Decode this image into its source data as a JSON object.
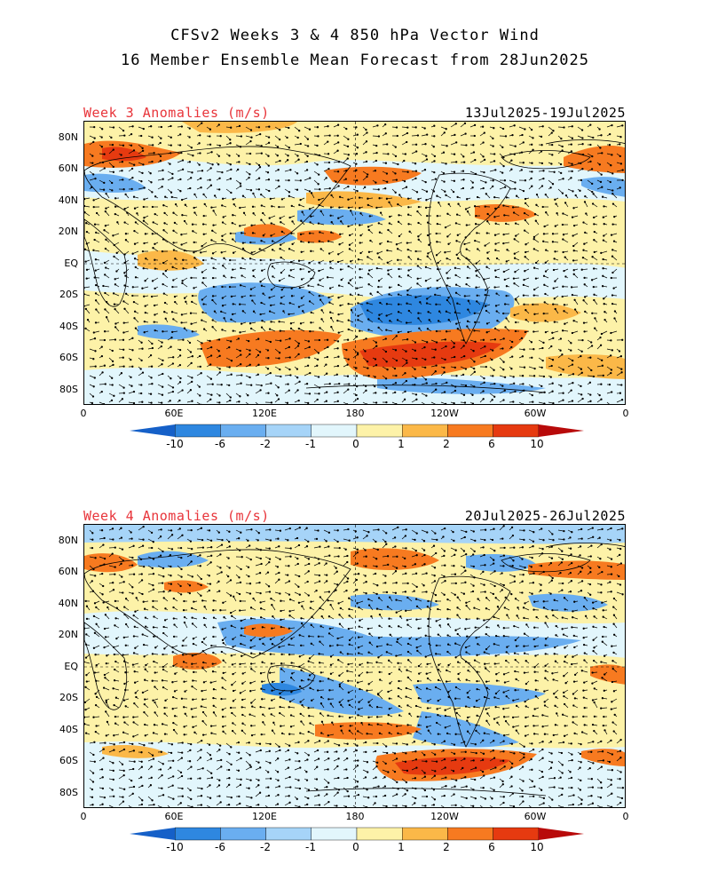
{
  "title": {
    "line1": "CFSv2 Weeks 3 & 4 850 hPa Vector Wind",
    "line2": "16 Member Ensemble Mean Forecast from 28Jun2025"
  },
  "panels": [
    {
      "label": "Week 3 Anomalies (m/s)",
      "dates": "13Jul2025-19Jul2025",
      "lat_ticks": [
        "80N",
        "60N",
        "40N",
        "20N",
        "EQ",
        "20S",
        "40S",
        "60S",
        "80S"
      ],
      "lon_ticks": [
        "0",
        "60E",
        "120E",
        "180",
        "120W",
        "60W",
        "0"
      ]
    },
    {
      "label": "Week 4 Anomalies (m/s)",
      "dates": "20Jul2025-26Jul2025",
      "lat_ticks": [
        "80N",
        "60N",
        "40N",
        "20N",
        "EQ",
        "20S",
        "40S",
        "60S",
        "80S"
      ],
      "lon_ticks": [
        "0",
        "60E",
        "120E",
        "180",
        "120W",
        "60W",
        "0"
      ]
    }
  ],
  "colorbar": {
    "labels": [
      "-10",
      "-6",
      "-2",
      "-1",
      "0",
      "1",
      "2",
      "6",
      "10"
    ],
    "colors": [
      "#1560c8",
      "#2e87e0",
      "#6aaef0",
      "#a6d4f8",
      "#e2f6fc",
      "#fdf2a8",
      "#fbb848",
      "#f77a20",
      "#e63a10",
      "#b80a0a"
    ]
  },
  "colors": {
    "title_red": "#e8343a",
    "land_outline": "#000000",
    "vector": "#000000"
  }
}
